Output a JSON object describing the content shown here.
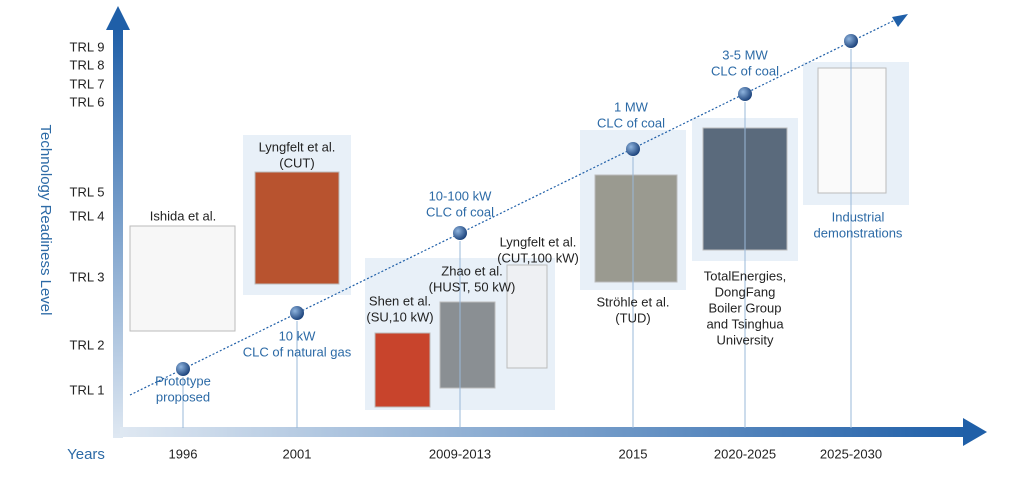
{
  "y_axis": {
    "label": "Technology Readiness Level",
    "levels": [
      "TRL 9",
      "TRL 8",
      "TRL 7",
      "TRL 6",
      "TRL 5",
      "TRL 4",
      "TRL 3",
      "TRL 2",
      "TRL 1"
    ]
  },
  "x_axis": {
    "label": "Years",
    "years": [
      "1996",
      "2001",
      "2009-2013",
      "2015",
      "2020-2025",
      "2025-2030"
    ]
  },
  "milestones": [
    {
      "stage": [
        "Prototype",
        "proposed"
      ],
      "groups": [
        [
          "Ishida et al."
        ]
      ]
    },
    {
      "stage": [
        "10 kW",
        "CLC of natural gas"
      ],
      "groups": [
        [
          "Lyngfelt et al.",
          "(CUT)"
        ]
      ]
    },
    {
      "stage": [
        "10-100 kW",
        "CLC of coal"
      ],
      "groups": [
        [
          "Shen et al.",
          "(SU,10 kW)"
        ],
        [
          "Zhao et al.",
          "(HUST, 50 kW)"
        ],
        [
          "Lyngfelt et al.",
          "(CUT,100 kW)"
        ]
      ]
    },
    {
      "stage": [
        "1 MW",
        "CLC of coal"
      ],
      "groups": [
        [
          "Ströhle et al.",
          "(TUD)"
        ]
      ]
    },
    {
      "stage": [
        "3-5 MW",
        "CLC of coal"
      ],
      "groups": [
        [
          "TotalEnergies,",
          "DongFang",
          "Boiler Group",
          "and Tsinghua",
          "University"
        ]
      ]
    },
    {
      "stage": [
        "Industrial",
        "demonstrations"
      ],
      "groups": []
    }
  ]
}
